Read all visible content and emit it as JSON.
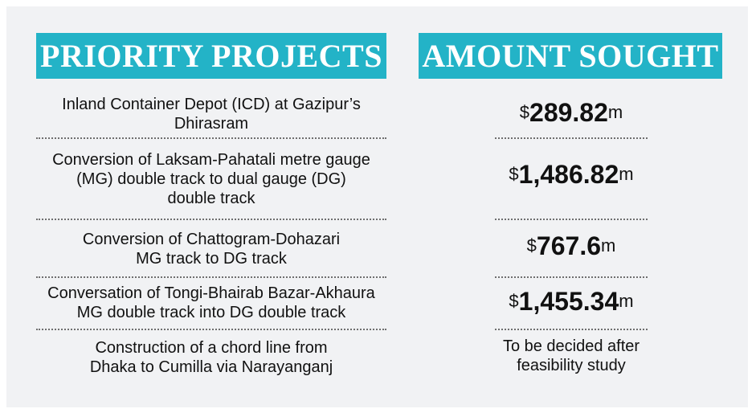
{
  "headers": {
    "projects": "PRIORITY PROJECTS",
    "amount": "AMOUNT SOUGHT"
  },
  "rows": [
    {
      "project_line1": "Inland Container Depot (ICD) at Gazipur’s",
      "project_line2": "Dhirasram",
      "project_line3": "",
      "currency": "$",
      "amount": "289.82",
      "unit": "m"
    },
    {
      "project_line1": "Conversion of Laksam-Pahatali metre gauge",
      "project_line2": "(MG)  double track to dual gauge (DG)",
      "project_line3": "double track",
      "currency": "$",
      "amount": "1,486.82",
      "unit": "m"
    },
    {
      "project_line1": "Conversion of Chattogram-Dohazari",
      "project_line2": "MG track to DG track",
      "project_line3": "",
      "currency": "$",
      "amount": "767.6",
      "unit": "m"
    },
    {
      "project_line1": "Conversation of Tongi-Bhairab Bazar-Akhaura",
      "project_line2": "MG double track into DG double track",
      "project_line3": "",
      "currency": "$",
      "amount": "1,455.34",
      "unit": "m"
    },
    {
      "project_line1": "Construction of a chord line from",
      "project_line2": "Dhaka to Cumilla via Narayanganj",
      "project_line3": "",
      "note_line1": "To be decided after",
      "note_line2": "feasibility study"
    }
  ],
  "colors": {
    "header_bg": "#23b3c7",
    "panel_bg": "#f1f2f4"
  }
}
